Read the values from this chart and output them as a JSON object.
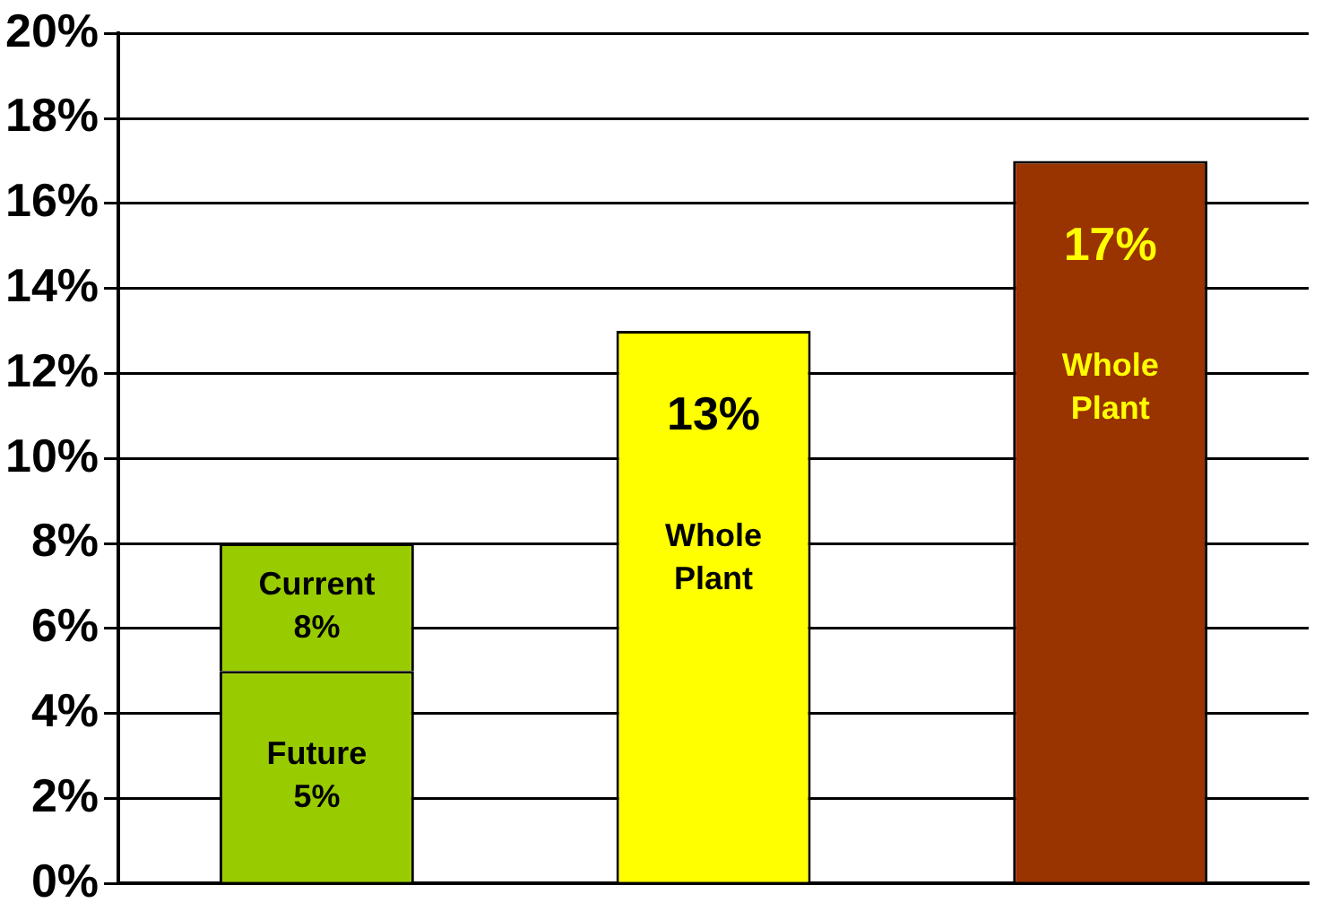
{
  "chart_data": {
    "type": "bar",
    "stacked": true,
    "categories": [
      null,
      null,
      null
    ],
    "series": [
      {
        "colors": [
          "#99cc00",
          "#ffff00",
          "#993300"
        ],
        "values": [
          5,
          13,
          17
        ],
        "value_labels": [
          "Future\n5%",
          "13%\nWhole\nPlant",
          "17%\nWhole\nPlant"
        ]
      },
      {
        "color": "#99cc00",
        "values": [
          3,
          null,
          null
        ],
        "value_labels": [
          "Current\n8%",
          null,
          null
        ]
      }
    ],
    "ylim": [
      0,
      20
    ],
    "yticks": [
      {
        "value": 0,
        "label": "0%"
      },
      {
        "value": 2,
        "label": "2%"
      },
      {
        "value": 4,
        "label": "4%"
      },
      {
        "value": 6,
        "label": "6%"
      },
      {
        "value": 8,
        "label": "8%"
      },
      {
        "value": 10,
        "label": "10%"
      },
      {
        "value": 12,
        "label": "12%"
      },
      {
        "value": 14,
        "label": "14%"
      },
      {
        "value": 16,
        "label": "16%"
      },
      {
        "value": 18,
        "label": "18%"
      },
      {
        "value": 20,
        "label": "20%"
      }
    ],
    "grid": "y",
    "legend": false
  }
}
